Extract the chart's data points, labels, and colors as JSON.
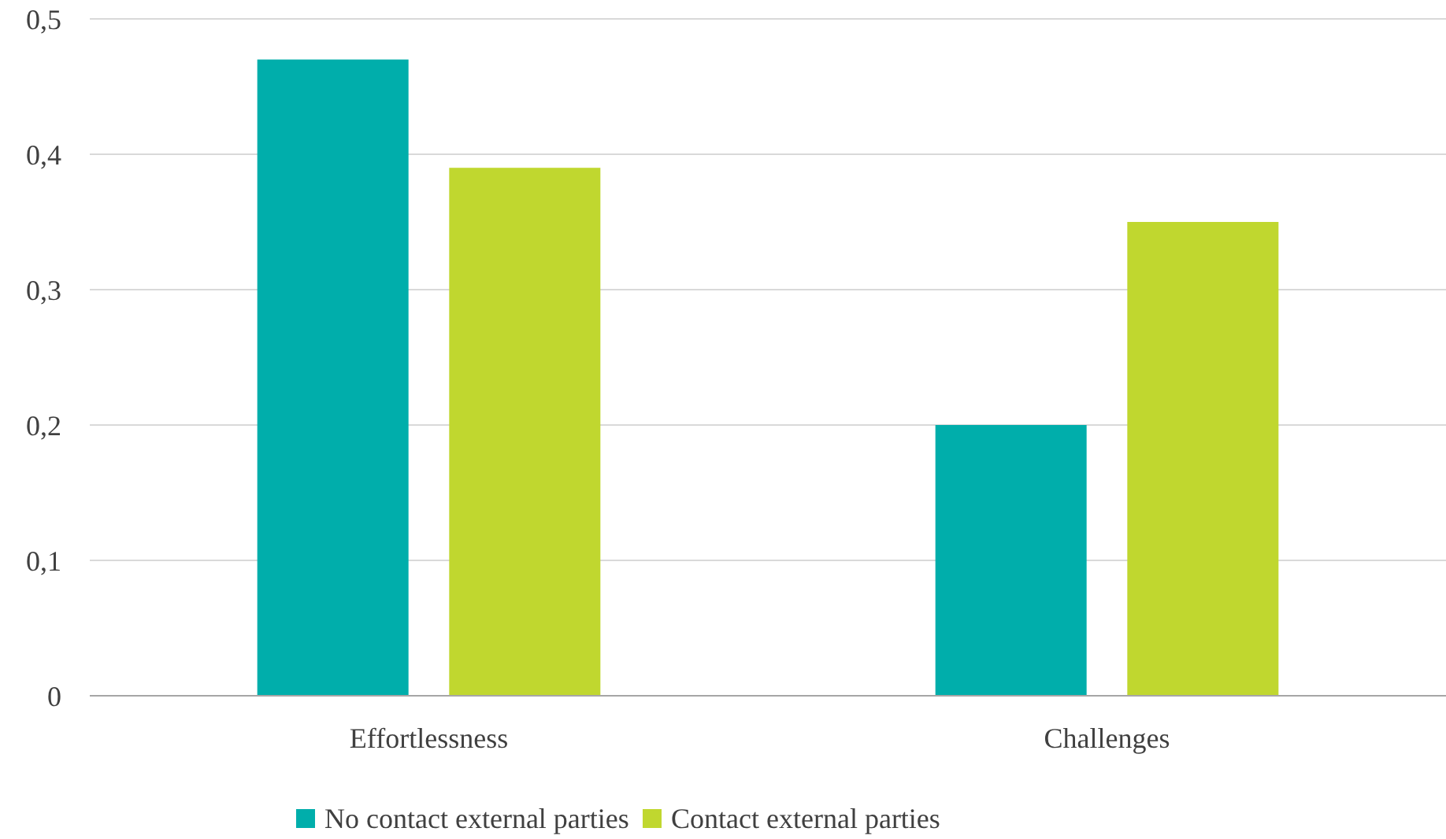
{
  "chart_data": {
    "type": "bar",
    "categories": [
      "Effortlessness",
      "Challenges"
    ],
    "series": [
      {
        "name": "No contact external parties",
        "color": "#00aeab",
        "values": [
          0.47,
          0.2
        ]
      },
      {
        "name": "Contact external parties",
        "color": "#c0d72f",
        "values": [
          0.39,
          0.35
        ]
      }
    ],
    "ylim": [
      0,
      0.5
    ],
    "yticks": [
      0,
      {
        "value": 0.1,
        "label": "0,1"
      },
      {
        "value": 0.2,
        "label": "0,2"
      },
      {
        "value": 0.3,
        "label": "0,3"
      },
      {
        "value": 0.4,
        "label": "0,4"
      },
      {
        "value": 0.5,
        "label": "0,5"
      }
    ],
    "grid": "y",
    "legend": "bottom"
  }
}
